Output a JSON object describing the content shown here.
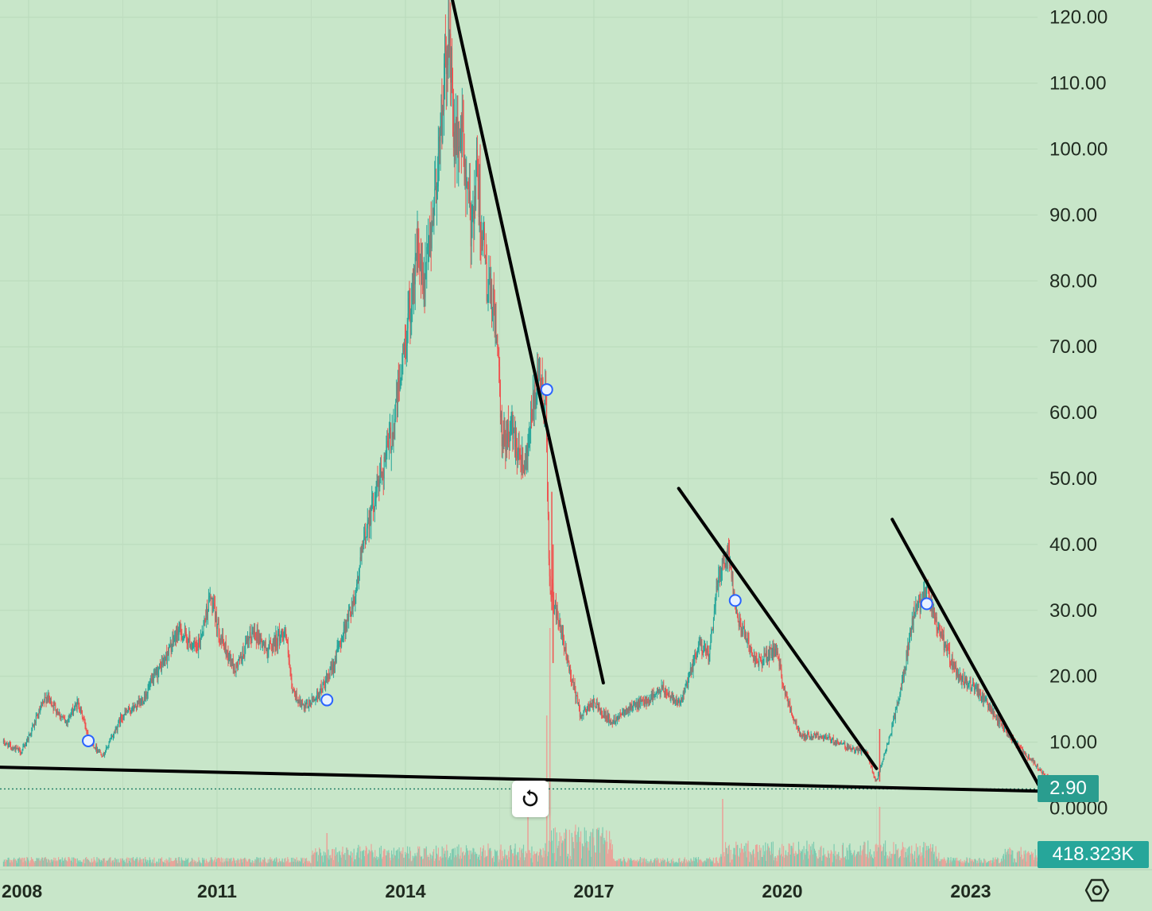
{
  "chart_data": {
    "type": "candlestick",
    "title": "",
    "xlabel": "",
    "ylabel": "",
    "ylim": [
      -0.5,
      122
    ],
    "xlim": [
      2007.55,
      2024.4
    ],
    "x_ticks": [
      "2008",
      "2011",
      "2014",
      "2017",
      "2020",
      "2023"
    ],
    "y_ticks": [
      "120.00",
      "110.00",
      "100.00",
      "90.00",
      "80.00",
      "70.00",
      "60.00",
      "50.00",
      "40.00",
      "30.00",
      "20.00",
      "10.00",
      "0.0000"
    ],
    "grid": true,
    "up_color": "#26a69a",
    "down_color": "#ef5350",
    "price_path": [
      {
        "x": 2007.6,
        "y": 10
      },
      {
        "x": 2007.9,
        "y": 8.5
      },
      {
        "x": 2008.3,
        "y": 17
      },
      {
        "x": 2008.6,
        "y": 13
      },
      {
        "x": 2008.8,
        "y": 16
      },
      {
        "x": 2009.0,
        "y": 10
      },
      {
        "x": 2009.2,
        "y": 8
      },
      {
        "x": 2009.5,
        "y": 14
      },
      {
        "x": 2009.8,
        "y": 16
      },
      {
        "x": 2010.2,
        "y": 23
      },
      {
        "x": 2010.4,
        "y": 27
      },
      {
        "x": 2010.7,
        "y": 24
      },
      {
        "x": 2010.9,
        "y": 32
      },
      {
        "x": 2011.1,
        "y": 25
      },
      {
        "x": 2011.3,
        "y": 21
      },
      {
        "x": 2011.6,
        "y": 27
      },
      {
        "x": 2011.8,
        "y": 24
      },
      {
        "x": 2012.1,
        "y": 27
      },
      {
        "x": 2012.2,
        "y": 18
      },
      {
        "x": 2012.4,
        "y": 15
      },
      {
        "x": 2012.6,
        "y": 17
      },
      {
        "x": 2012.8,
        "y": 20
      },
      {
        "x": 2013.0,
        "y": 26
      },
      {
        "x": 2013.2,
        "y": 32
      },
      {
        "x": 2013.4,
        "y": 43
      },
      {
        "x": 2013.6,
        "y": 50
      },
      {
        "x": 2013.8,
        "y": 57
      },
      {
        "x": 2014.0,
        "y": 70
      },
      {
        "x": 2014.2,
        "y": 85
      },
      {
        "x": 2014.3,
        "y": 78
      },
      {
        "x": 2014.5,
        "y": 95
      },
      {
        "x": 2014.7,
        "y": 118
      },
      {
        "x": 2014.8,
        "y": 100
      },
      {
        "x": 2014.9,
        "y": 103
      },
      {
        "x": 2015.05,
        "y": 88
      },
      {
        "x": 2015.15,
        "y": 97
      },
      {
        "x": 2015.3,
        "y": 80
      },
      {
        "x": 2015.45,
        "y": 74
      },
      {
        "x": 2015.55,
        "y": 55
      },
      {
        "x": 2015.7,
        "y": 58
      },
      {
        "x": 2015.9,
        "y": 52
      },
      {
        "x": 2016.1,
        "y": 64
      },
      {
        "x": 2016.25,
        "y": 62
      },
      {
        "x": 2016.3,
        "y": 34
      },
      {
        "x": 2016.45,
        "y": 28
      },
      {
        "x": 2016.6,
        "y": 22
      },
      {
        "x": 2016.8,
        "y": 14
      },
      {
        "x": 2017.0,
        "y": 16
      },
      {
        "x": 2017.3,
        "y": 13
      },
      {
        "x": 2017.5,
        "y": 15
      },
      {
        "x": 2017.8,
        "y": 16
      },
      {
        "x": 2018.1,
        "y": 18
      },
      {
        "x": 2018.4,
        "y": 16
      },
      {
        "x": 2018.7,
        "y": 25
      },
      {
        "x": 2018.85,
        "y": 23
      },
      {
        "x": 2019.0,
        "y": 36
      },
      {
        "x": 2019.15,
        "y": 39
      },
      {
        "x": 2019.3,
        "y": 29
      },
      {
        "x": 2019.6,
        "y": 22
      },
      {
        "x": 2019.9,
        "y": 24
      },
      {
        "x": 2020.1,
        "y": 16
      },
      {
        "x": 2020.3,
        "y": 11
      },
      {
        "x": 2020.6,
        "y": 11
      },
      {
        "x": 2020.9,
        "y": 10
      },
      {
        "x": 2021.1,
        "y": 9
      },
      {
        "x": 2021.35,
        "y": 8.5
      },
      {
        "x": 2021.5,
        "y": 4
      },
      {
        "x": 2021.7,
        "y": 10
      },
      {
        "x": 2021.9,
        "y": 18
      },
      {
        "x": 2022.1,
        "y": 29
      },
      {
        "x": 2022.3,
        "y": 33
      },
      {
        "x": 2022.5,
        "y": 27
      },
      {
        "x": 2022.8,
        "y": 20
      },
      {
        "x": 2023.1,
        "y": 18
      },
      {
        "x": 2023.4,
        "y": 14
      },
      {
        "x": 2023.7,
        "y": 10
      },
      {
        "x": 2024.0,
        "y": 7
      },
      {
        "x": 2024.2,
        "y": 5
      },
      {
        "x": 2024.35,
        "y": 3.3
      }
    ],
    "trendlines": [
      {
        "x1": 2007.5,
        "y1": 6.2,
        "x2": 2024.4,
        "y2": 2.5
      },
      {
        "x1": 2014.75,
        "y1": 122.5,
        "x2": 2017.15,
        "y2": 19
      },
      {
        "x1": 2018.35,
        "y1": 48.5,
        "x2": 2021.5,
        "y2": 6
      },
      {
        "x1": 2021.75,
        "y1": 43.8,
        "x2": 2024.08,
        "y2": 3.5
      }
    ],
    "event_markers": [
      {
        "x": 2008.95,
        "y": 10.2
      },
      {
        "x": 2012.75,
        "y": 16.4
      },
      {
        "x": 2016.25,
        "y": 63.5
      },
      {
        "x": 2019.25,
        "y": 31.5
      },
      {
        "x": 2022.3,
        "y": 31.0
      }
    ],
    "last_price": 2.9,
    "last_price_label": "2.90",
    "last_volume_label": "418.323K",
    "price_badge_color": "#2a9d8f",
    "volume_badge_color": "#26a69a"
  },
  "controls": {
    "reset_icon": "reset-icon",
    "settings_icon": "settings-icon"
  }
}
